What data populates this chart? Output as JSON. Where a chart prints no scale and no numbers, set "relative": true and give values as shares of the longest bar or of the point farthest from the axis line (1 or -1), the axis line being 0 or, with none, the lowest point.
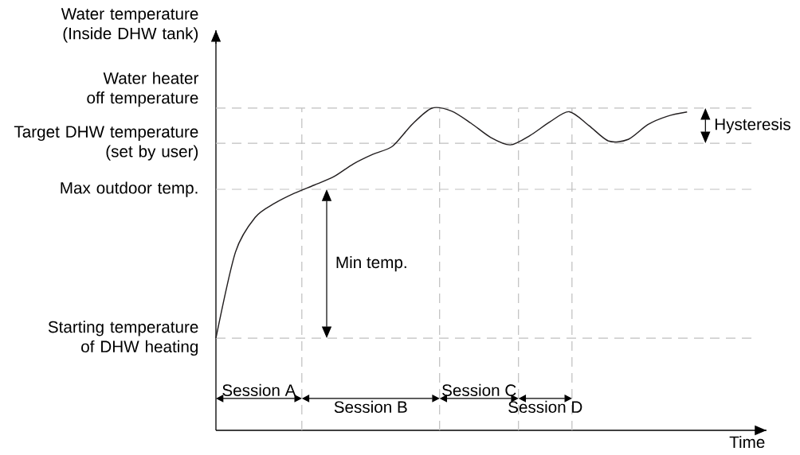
{
  "chart_data": {
    "type": "line",
    "relative": true,
    "ylabel": "Water temperature (Inside DHW tank)",
    "xlabel": "Time",
    "categories": [
      null,
      null,
      null,
      null,
      null,
      null,
      null,
      null,
      null,
      null,
      null,
      null,
      null,
      null,
      null,
      null,
      null,
      null,
      null,
      null,
      null,
      null,
      null,
      null,
      null
    ],
    "series": [
      {
        "color": "#231f20",
        "values": [
          0.286,
          0.554,
          0.661,
          0.705,
          0.736,
          0.761,
          0.787,
          0.827,
          0.857,
          0.882,
          0.95,
          1.0,
          0.991,
          0.953,
          0.909,
          0.886,
          0.915,
          0.957,
          0.989,
          0.946,
          0.898,
          0.903,
          0.949,
          0.975,
          0.988
        ]
      }
    ],
    "ref_lines": [
      {
        "axis": "y",
        "value": 1.0,
        "label": "Water heater off temperature",
        "color": "#c0c0c0",
        "line_style": "dashed"
      },
      {
        "axis": "y",
        "value": 0.891,
        "label": "Target DHW temperature (set by user)",
        "color": "#c0c0c0",
        "line_style": "dashed"
      },
      {
        "axis": "y",
        "value": 0.748,
        "label": "Max outdoor temp.",
        "color": "#c0c0c0",
        "line_style": "dashed"
      },
      {
        "axis": "y",
        "value": 0.286,
        "label": "Starting temperature of DHW heating",
        "color": "#c0c0c0",
        "line_style": "dashed"
      }
    ],
    "annotations": [
      "Session A",
      "Session B",
      "Session C",
      "Session D",
      "Min temp.",
      "Hysteresis"
    ]
  }
}
